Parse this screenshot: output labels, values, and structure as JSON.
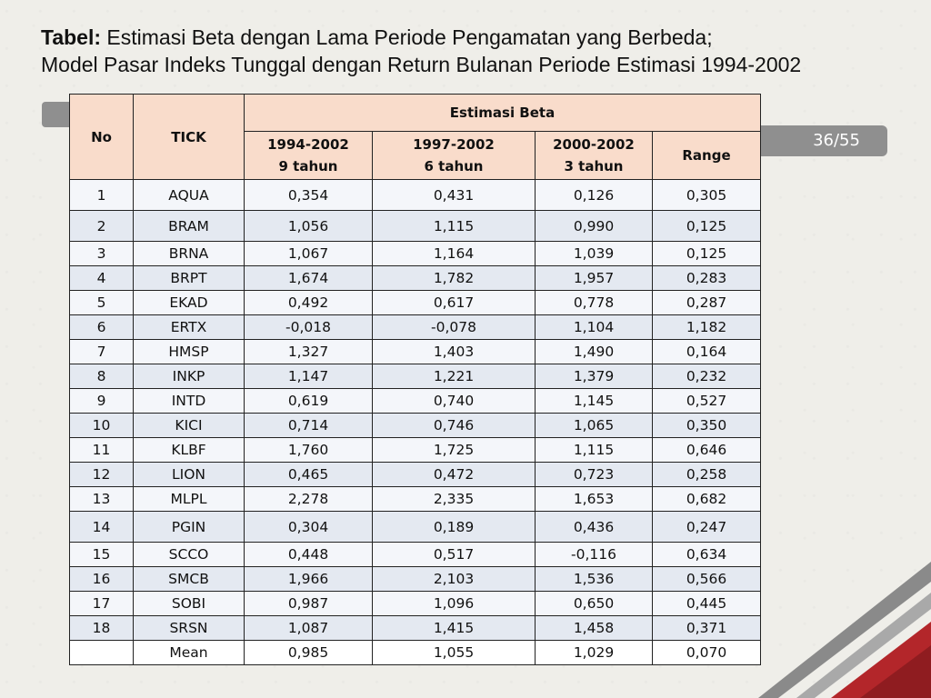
{
  "title": {
    "bold_label": "Tabel:",
    "line1": " Estimasi Beta dengan Lama Periode Pengamatan yang Berbeda;",
    "line2": "Model Pasar Indeks Tunggal dengan Return Bulanan Periode Estimasi 1994-2002"
  },
  "page_indicator": "36/55",
  "table": {
    "headers": {
      "no": "No",
      "tick": "TICK",
      "group": "Estimasi Beta",
      "p1_years": "1994-2002",
      "p1_len": "9 tahun",
      "p2_years": "1997-2002",
      "p2_len": "6 tahun",
      "p3_years": "2000-2002",
      "p3_len": "3 tahun",
      "range": "Range"
    },
    "rows": [
      {
        "no": "1",
        "tick": "AQUA",
        "b1": "0,354",
        "b2": "0,431",
        "b3": "0,126",
        "range": "0,305"
      },
      {
        "no": "2",
        "tick": "BRAM",
        "b1": "1,056",
        "b2": "1,115",
        "b3": "0,990",
        "range": "0,125"
      },
      {
        "no": "3",
        "tick": "BRNA",
        "b1": "1,067",
        "b2": "1,164",
        "b3": "1,039",
        "range": "0,125"
      },
      {
        "no": "4",
        "tick": "BRPT",
        "b1": "1,674",
        "b2": "1,782",
        "b3": "1,957",
        "range": "0,283"
      },
      {
        "no": "5",
        "tick": "EKAD",
        "b1": "0,492",
        "b2": "0,617",
        "b3": "0,778",
        "range": "0,287"
      },
      {
        "no": "6",
        "tick": "ERTX",
        "b1": "-0,018",
        "b2": "-0,078",
        "b3": "1,104",
        "range": "1,182"
      },
      {
        "no": "7",
        "tick": "HMSP",
        "b1": "1,327",
        "b2": "1,403",
        "b3": "1,490",
        "range": "0,164"
      },
      {
        "no": "8",
        "tick": "INKP",
        "b1": "1,147",
        "b2": "1,221",
        "b3": "1,379",
        "range": "0,232"
      },
      {
        "no": "9",
        "tick": "INTD",
        "b1": "0,619",
        "b2": "0,740",
        "b3": "1,145",
        "range": "0,527"
      },
      {
        "no": "10",
        "tick": "KICI",
        "b1": "0,714",
        "b2": "0,746",
        "b3": "1,065",
        "range": "0,350"
      },
      {
        "no": "11",
        "tick": "KLBF",
        "b1": "1,760",
        "b2": "1,725",
        "b3": "1,115",
        "range": "0,646"
      },
      {
        "no": "12",
        "tick": "LION",
        "b1": "0,465",
        "b2": "0,472",
        "b3": "0,723",
        "range": "0,258"
      },
      {
        "no": "13",
        "tick": "MLPL",
        "b1": "2,278",
        "b2": "2,335",
        "b3": "1,653",
        "range": "0,682"
      },
      {
        "no": "14",
        "tick": "PGIN",
        "b1": "0,304",
        "b2": "0,189",
        "b3": "0,436",
        "range": "0,247"
      },
      {
        "no": "15",
        "tick": "SCCO",
        "b1": "0,448",
        "b2": "0,517",
        "b3": "-0,116",
        "range": "0,634"
      },
      {
        "no": "16",
        "tick": "SMCB",
        "b1": "1,966",
        "b2": "2,103",
        "b3": "1,536",
        "range": "0,566"
      },
      {
        "no": "17",
        "tick": "SOBI",
        "b1": "0,987",
        "b2": "1,096",
        "b3": "0,650",
        "range": "0,445"
      },
      {
        "no": "18",
        "tick": "SRSN",
        "b1": "1,087",
        "b2": "1,415",
        "b3": "1,458",
        "range": "0,371"
      }
    ],
    "mean": {
      "label": "Mean",
      "b1": "0,985",
      "b2": "1,055",
      "b3": "1,029",
      "range": "0,070"
    }
  },
  "colors": {
    "header_fill": "#f9dccb",
    "row_even": "#e4e9f1",
    "row_odd": "#f4f6fa",
    "accent_red": "#b3262a",
    "deco_gray": "#8f8f8f"
  }
}
